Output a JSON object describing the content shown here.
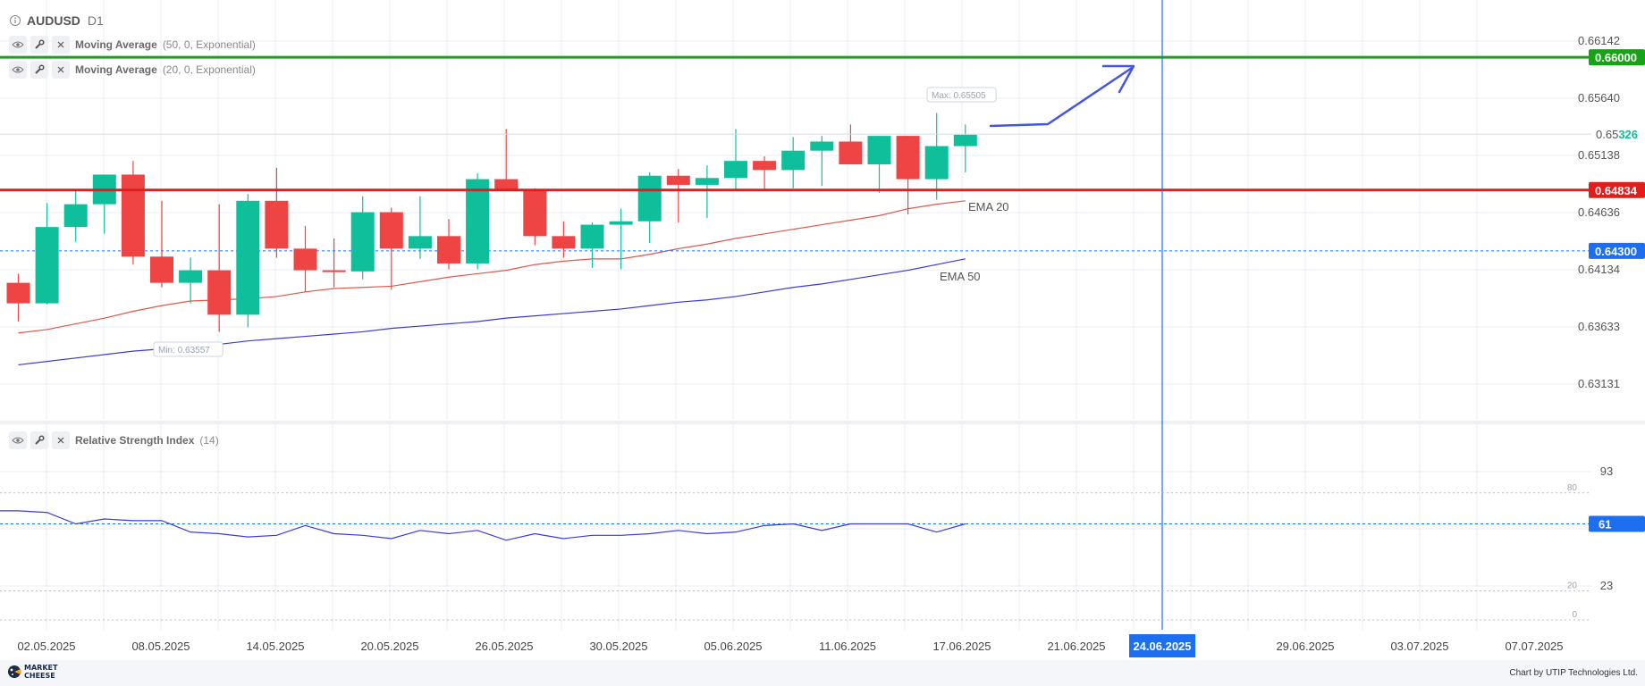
{
  "symbol": {
    "name": "AUDUSD",
    "timeframe": "D1"
  },
  "indicators": [
    {
      "name": "Moving Average",
      "params": "(50, 0, Exponential)"
    },
    {
      "name": "Moving Average",
      "params": "(20, 0, Exponential)"
    }
  ],
  "rsi_panel": {
    "name": "Relative Strength Index",
    "params": "(14)"
  },
  "footer": {
    "logo_line1": "MARKET",
    "logo_line2": "CHEESE",
    "credit": "Chart by UTIP Technologies Ltd."
  },
  "colors": {
    "bull": "#0fbf9b",
    "bear": "#ef4444",
    "ema20": "#e0584a",
    "ema50": "#3a3ad9",
    "resistance": "#16a316",
    "support": "#e11d1d",
    "accent": "#1e6ff0",
    "arrow": "#4455e6"
  },
  "chart_data": {
    "type": "candlestick",
    "title": "AUDUSD D1",
    "price_axis_ticks": [
      "0.66142",
      "0.65640",
      "0.65138",
      "0.64636",
      "0.64134",
      "0.63633",
      "0.63131"
    ],
    "ylim": [
      0.6296,
      0.665
    ],
    "x_tick_labels": [
      "02.05.2025",
      "08.05.2025",
      "14.05.2025",
      "20.05.2025",
      "26.05.2025",
      "30.05.2025",
      "05.06.2025",
      "11.06.2025",
      "17.06.2025",
      "21.06.2025",
      "24.06.2025",
      "29.06.2025",
      "03.07.2025",
      "07.07.2025"
    ],
    "candles": [
      [
        0.6402,
        0.641,
        0.6368,
        0.6384
      ],
      [
        0.6384,
        0.6472,
        0.6383,
        0.6451
      ],
      [
        0.6451,
        0.6484,
        0.6438,
        0.6471
      ],
      [
        0.6471,
        0.6495,
        0.6445,
        0.6497
      ],
      [
        0.6497,
        0.6509,
        0.6418,
        0.6425
      ],
      [
        0.6425,
        0.6474,
        0.6398,
        0.6402
      ],
      [
        0.6402,
        0.6424,
        0.6384,
        0.6413
      ],
      [
        0.6413,
        0.6471,
        0.6359,
        0.6374
      ],
      [
        0.6374,
        0.648,
        0.6363,
        0.6474
      ],
      [
        0.6474,
        0.6503,
        0.6424,
        0.6432
      ],
      [
        0.6432,
        0.6452,
        0.6394,
        0.6413
      ],
      [
        0.6413,
        0.6441,
        0.6398,
        0.6412
      ],
      [
        0.6412,
        0.6478,
        0.6405,
        0.6464
      ],
      [
        0.6464,
        0.6468,
        0.6396,
        0.6432
      ],
      [
        0.6432,
        0.6478,
        0.6423,
        0.6443
      ],
      [
        0.6443,
        0.6458,
        0.6414,
        0.6419
      ],
      [
        0.6419,
        0.6498,
        0.6414,
        0.6493
      ],
      [
        0.6493,
        0.6537,
        0.6484,
        0.6483
      ],
      [
        0.6483,
        0.6485,
        0.6435,
        0.6443
      ],
      [
        0.6443,
        0.6456,
        0.6424,
        0.6432
      ],
      [
        0.6432,
        0.6455,
        0.6415,
        0.6453
      ],
      [
        0.6453,
        0.6467,
        0.6414,
        0.6456
      ],
      [
        0.6456,
        0.6499,
        0.6437,
        0.6496
      ],
      [
        0.6496,
        0.6502,
        0.6455,
        0.6488
      ],
      [
        0.6488,
        0.6505,
        0.6459,
        0.6494
      ],
      [
        0.6494,
        0.6537,
        0.6484,
        0.6509
      ],
      [
        0.6509,
        0.6513,
        0.6483,
        0.6501
      ],
      [
        0.6501,
        0.653,
        0.6485,
        0.6518
      ],
      [
        0.6518,
        0.6531,
        0.6487,
        0.6526
      ],
      [
        0.6526,
        0.6541,
        0.6506,
        0.6506
      ],
      [
        0.6506,
        0.6531,
        0.6481,
        0.6531
      ],
      [
        0.6531,
        0.6531,
        0.6462,
        0.6493
      ],
      [
        0.6493,
        0.6551,
        0.6475,
        0.6522
      ],
      [
        0.6522,
        0.6541,
        0.6499,
        0.6532
      ]
    ],
    "candle_dates_first": "02.05.2025",
    "ema20": [
      0.6358,
      0.6361,
      0.6366,
      0.6371,
      0.6377,
      0.6382,
      0.6386,
      0.6387,
      0.6388,
      0.639,
      0.6394,
      0.6397,
      0.6398,
      0.6399,
      0.6403,
      0.6407,
      0.641,
      0.6413,
      0.6418,
      0.6421,
      0.6423,
      0.6423,
      0.6427,
      0.6432,
      0.6436,
      0.6441,
      0.6445,
      0.6449,
      0.6453,
      0.6457,
      0.6461,
      0.6467,
      0.6471,
      0.6474
    ],
    "ema50": [
      0.633,
      0.6333,
      0.6336,
      0.6339,
      0.6342,
      0.6344,
      0.6346,
      0.6348,
      0.6351,
      0.6353,
      0.6355,
      0.6357,
      0.6359,
      0.6362,
      0.6364,
      0.6366,
      0.6368,
      0.6371,
      0.6373,
      0.6375,
      0.6377,
      0.6379,
      0.6382,
      0.6385,
      0.6387,
      0.639,
      0.6394,
      0.6398,
      0.6401,
      0.6405,
      0.6409,
      0.6413,
      0.6418,
      0.6423
    ],
    "ema20_label": "EMA 20",
    "ema50_label": "EMA 50",
    "max_label": "Max: 0.65505",
    "min_label": "Min: 0.63557",
    "horizontal_lines": [
      {
        "price": 0.66,
        "label": "0.66000",
        "kind": "resistance"
      },
      {
        "price": 0.64834,
        "label": "0.64834",
        "kind": "support"
      },
      {
        "price": 0.643,
        "label": "0.64300",
        "kind": "dotted"
      }
    ],
    "current_price_label": {
      "price": 0.65326,
      "prefix": "0.65",
      "suffix": "326"
    },
    "vertical_line": {
      "date": "24.06.2025",
      "label": "24.06.2025"
    },
    "rsi": {
      "values": [
        69,
        68,
        61,
        64,
        63,
        63,
        56,
        55,
        53,
        54,
        60,
        55,
        54,
        52,
        57,
        55,
        57,
        51,
        55,
        52,
        54,
        54,
        55,
        57,
        55,
        56,
        60,
        61,
        57,
        61,
        61,
        61,
        56,
        61
      ],
      "axis_ticks": [
        "93",
        "23"
      ],
      "level_labels": [
        "80",
        "20",
        "0"
      ],
      "current_label": "61",
      "ylim": [
        0,
        100
      ]
    }
  }
}
